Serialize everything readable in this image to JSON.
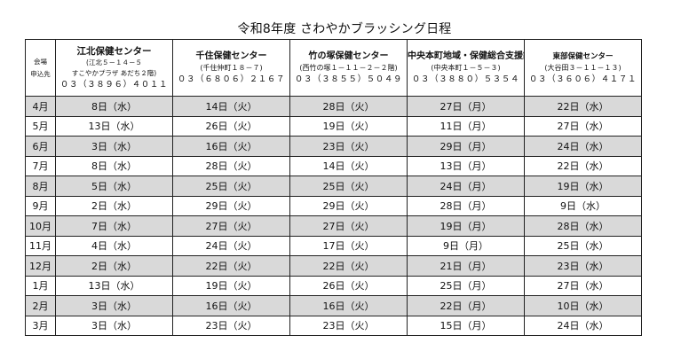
{
  "title": "令和8年度 さわやかブラッシング日程",
  "venue_label": {
    "line1": "会場",
    "line2": "申込先"
  },
  "centers": [
    {
      "name": "江北保健センター",
      "address": "(江北５－１４－５",
      "address2": "すこやかプラザ あだち２階)",
      "tel": "０３（３８９６）４０１１"
    },
    {
      "name": "千住保健センター",
      "address": "(千住仲町１８－７)",
      "address2": "",
      "tel": "０３（６８０６）２１６７"
    },
    {
      "name": "竹の塚保健センター",
      "address": "(西竹の塚１－１１－２－２階)",
      "address2": "",
      "tel": "０３（３８５５）５０４９"
    },
    {
      "name": "中央本町地域・保健総合支援課",
      "address": "(中央本町１－５－３)",
      "address2": "",
      "tel": "０３（３８８０）５３５４"
    },
    {
      "name": "東部保健センター",
      "address": "(大谷田３－１１－１３)",
      "address2": "",
      "tel": "０３（３６０６）４１７１"
    }
  ],
  "rows": [
    {
      "month": "4月",
      "dates": [
        "8日（水）",
        "14日（火）",
        "28日（火）",
        "27日（月）",
        "22日（水）"
      ],
      "shaded": true
    },
    {
      "month": "5月",
      "dates": [
        "13日（水）",
        "26日（火）",
        "19日（火）",
        "11日（月）",
        "27日（水）"
      ],
      "shaded": false
    },
    {
      "month": "6月",
      "dates": [
        "3日（水）",
        "16日（火）",
        "23日（火）",
        "29日（月）",
        "24日（水）"
      ],
      "shaded": true
    },
    {
      "month": "7月",
      "dates": [
        "8日（水）",
        "28日（火）",
        "14日（火）",
        "13日（月）",
        "22日（水）"
      ],
      "shaded": false
    },
    {
      "month": "8月",
      "dates": [
        "5日（水）",
        "25日（火）",
        "25日（火）",
        "24日（月）",
        "19日（水）"
      ],
      "shaded": true
    },
    {
      "month": "9月",
      "dates": [
        "2日（水）",
        "29日（火）",
        "29日（火）",
        "28日（月）",
        "9日（水）"
      ],
      "shaded": false
    },
    {
      "month": "10月",
      "dates": [
        "7日（水）",
        "27日（火）",
        "27日（火）",
        "19日（月）",
        "28日（水）"
      ],
      "shaded": true
    },
    {
      "month": "11月",
      "dates": [
        "4日（水）",
        "24日（火）",
        "17日（火）",
        "9日（月）",
        "25日（水）"
      ],
      "shaded": false
    },
    {
      "month": "12月",
      "dates": [
        "2日（水）",
        "22日（火）",
        "22日（火）",
        "21日（月）",
        "23日（水）"
      ],
      "shaded": true
    },
    {
      "month": "1月",
      "dates": [
        "13日（水）",
        "19日（火）",
        "26日（火）",
        "25日（月）",
        "27日（水）"
      ],
      "shaded": false
    },
    {
      "month": "2月",
      "dates": [
        "3日（水）",
        "16日（火）",
        "16日（火）",
        "22日（月）",
        "10日（水）"
      ],
      "shaded": true
    },
    {
      "month": "3月",
      "dates": [
        "3日（水）",
        "23日（火）",
        "23日（火）",
        "15日（月）",
        "24日（水）"
      ],
      "shaded": false
    }
  ]
}
